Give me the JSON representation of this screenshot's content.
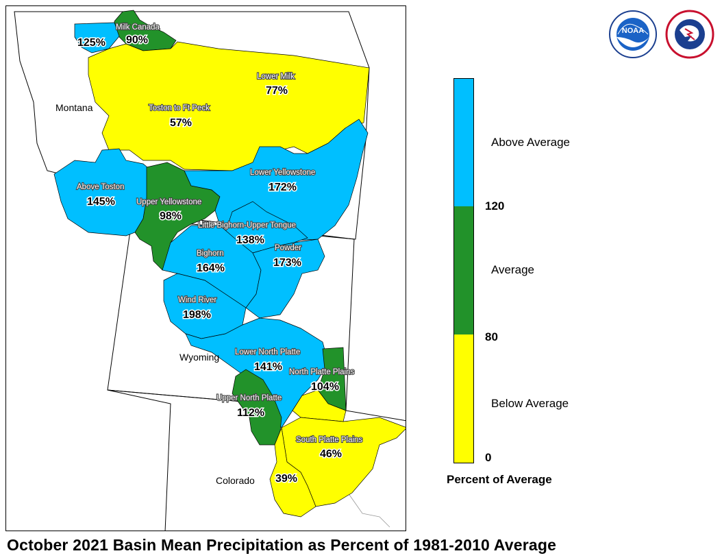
{
  "footer_title": "October 2021 Basin Mean Precipitation as Percent of 1981-2010 Average",
  "colors": {
    "above": "#00BFFF",
    "average": "#22922A",
    "below": "#FFFF00",
    "border": "#000000",
    "outline": "#ffffff"
  },
  "states": [
    {
      "name": "Montana"
    },
    {
      "name": "Wyoming"
    },
    {
      "name": "Colorado"
    }
  ],
  "basins": [
    {
      "name": "Milk Canada",
      "percent": "90%",
      "category": "average"
    },
    {
      "name": "",
      "percent": "125%",
      "category": "above"
    },
    {
      "name": "Lower Milk",
      "percent": "77%",
      "category": "below"
    },
    {
      "name": "Toston to Ft Peck",
      "percent": "57%",
      "category": "below"
    },
    {
      "name": "Above Toston",
      "percent": "145%",
      "category": "above"
    },
    {
      "name": "Upper Yellowstone",
      "percent": "98%",
      "category": "average"
    },
    {
      "name": "Lower Yellowstone",
      "percent": "172%",
      "category": "above"
    },
    {
      "name": "Little Bighorn-Upper Tongue",
      "percent": "138%",
      "category": "above"
    },
    {
      "name": "Bighorn",
      "percent": "164%",
      "category": "above"
    },
    {
      "name": "Powder",
      "percent": "173%",
      "category": "above"
    },
    {
      "name": "Wind River",
      "percent": "198%",
      "category": "above"
    },
    {
      "name": "Lower North Platte",
      "percent": "141%",
      "category": "above"
    },
    {
      "name": "North Platte Plains",
      "percent": "104%",
      "category": "average"
    },
    {
      "name": "Upper North Platte",
      "percent": "112%",
      "category": "average"
    },
    {
      "name": "South Platte Plains",
      "percent": "46%",
      "category": "below"
    },
    {
      "name": "",
      "percent": "39%",
      "category": "below"
    }
  ],
  "legend": {
    "title": "Percent of Average",
    "categories": {
      "above": "Above Average",
      "average": "Average",
      "below": "Below Average"
    },
    "thresholds": {
      "upper": "120",
      "lower": "80",
      "min": "0"
    }
  },
  "logos": [
    {
      "name": "noaa-logo",
      "text": "NOAA"
    },
    {
      "name": "nws-logo",
      "text": "NATIONAL WEATHER SERVICE"
    }
  ]
}
